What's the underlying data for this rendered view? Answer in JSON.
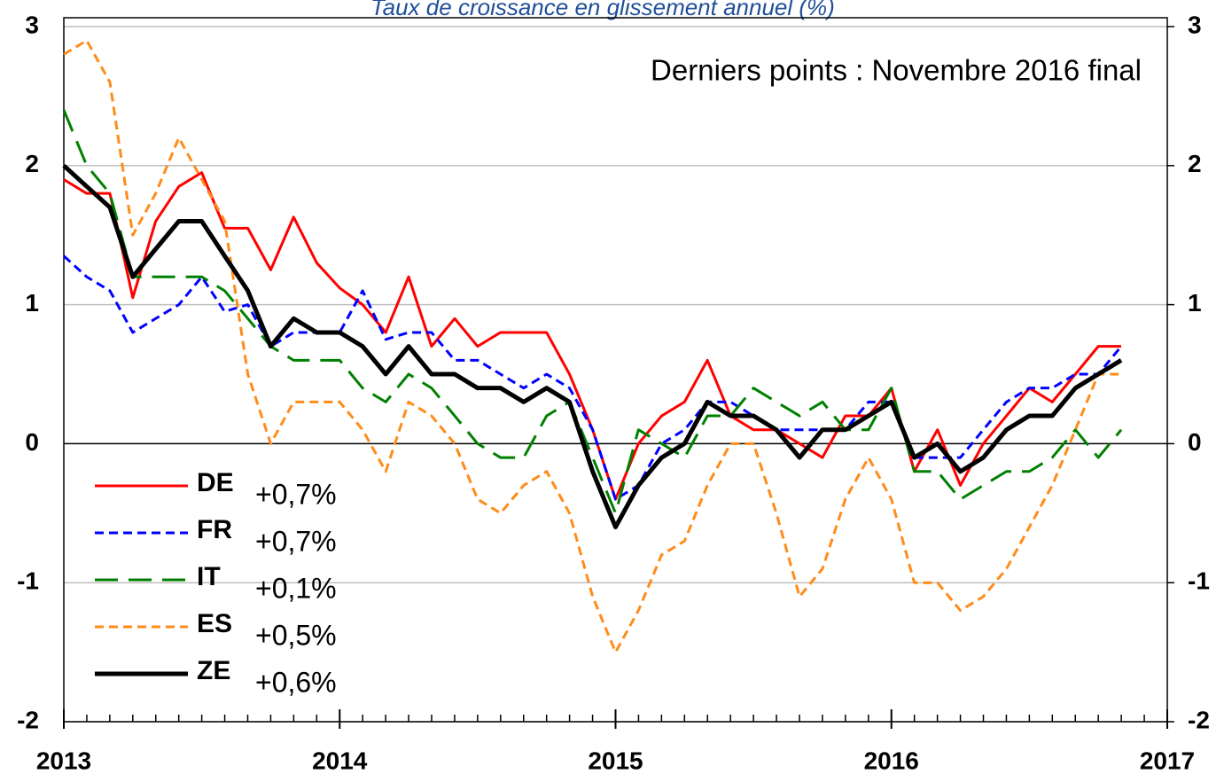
{
  "chart_data": {
    "type": "line",
    "title": "Taux de croissance en glissement annuel (%)",
    "annotation": "Derniers points : Novembre 2016 final",
    "x": [
      2013,
      2013.083,
      2013.167,
      2013.25,
      2013.333,
      2013.417,
      2013.5,
      2013.583,
      2013.667,
      2013.75,
      2013.833,
      2013.917,
      2014,
      2014.083,
      2014.167,
      2014.25,
      2014.333,
      2014.417,
      2014.5,
      2014.583,
      2014.667,
      2014.75,
      2014.833,
      2014.917,
      2015,
      2015.083,
      2015.167,
      2015.25,
      2015.333,
      2015.417,
      2015.5,
      2015.583,
      2015.667,
      2015.75,
      2015.833,
      2015.917,
      2016,
      2016.083,
      2016.167,
      2016.25,
      2016.333,
      2016.417,
      2016.5,
      2016.583,
      2016.667,
      2016.75,
      2016.833
    ],
    "xlim": [
      2013,
      2017
    ],
    "xticks": [
      2013,
      2014,
      2015,
      2016,
      2017
    ],
    "ylim": [
      -2,
      3
    ],
    "yticks": [
      -2,
      -1,
      0,
      1,
      2,
      3
    ],
    "y2lim": [
      -2,
      3
    ],
    "y2ticks": [
      -2,
      -1,
      0,
      1,
      2,
      3
    ],
    "grid": true,
    "legend": "lower left",
    "series": [
      {
        "name": "DE",
        "last_label": "+0,7%",
        "color": "#ff0000",
        "dash": "solid",
        "width": 3,
        "values": [
          1.9,
          1.8,
          1.8,
          1.05,
          1.6,
          1.85,
          1.95,
          1.55,
          1.55,
          1.25,
          1.63,
          1.3,
          1.12,
          1.0,
          0.8,
          1.2,
          0.7,
          0.9,
          0.7,
          0.8,
          0.8,
          0.8,
          0.5,
          0.1,
          -0.4,
          0.0,
          0.2,
          0.3,
          0.6,
          0.2,
          0.1,
          0.1,
          0.0,
          -0.1,
          0.2,
          0.2,
          0.4,
          -0.2,
          0.1,
          -0.3,
          0.0,
          0.2,
          0.4,
          0.3,
          0.5,
          0.7,
          0.7
        ]
      },
      {
        "name": "FR",
        "last_label": "+0,7%",
        "color": "#0000ff",
        "dash": "short",
        "width": 3,
        "values": [
          1.35,
          1.2,
          1.1,
          0.8,
          0.9,
          1.0,
          1.2,
          0.95,
          1.0,
          0.7,
          0.8,
          0.8,
          0.8,
          1.1,
          0.75,
          0.8,
          0.8,
          0.6,
          0.6,
          0.5,
          0.4,
          0.5,
          0.4,
          0.1,
          -0.4,
          -0.3,
          0.0,
          0.1,
          0.3,
          0.3,
          0.2,
          0.1,
          0.1,
          0.1,
          0.1,
          0.3,
          0.3,
          -0.1,
          -0.1,
          -0.1,
          0.1,
          0.3,
          0.4,
          0.4,
          0.5,
          0.5,
          0.7
        ]
      },
      {
        "name": "IT",
        "last_label": "+0,1%",
        "color": "#008000",
        "dash": "long",
        "width": 3,
        "values": [
          2.4,
          2.0,
          1.8,
          1.2,
          1.2,
          1.2,
          1.2,
          1.1,
          0.9,
          0.7,
          0.6,
          0.6,
          0.6,
          0.4,
          0.3,
          0.5,
          0.4,
          0.2,
          0.0,
          -0.1,
          -0.1,
          0.2,
          0.3,
          -0.1,
          -0.5,
          0.1,
          0.0,
          -0.1,
          0.2,
          0.2,
          0.4,
          0.3,
          0.2,
          0.3,
          0.1,
          0.1,
          0.4,
          -0.2,
          -0.2,
          -0.4,
          -0.3,
          -0.2,
          -0.2,
          -0.1,
          0.1,
          -0.1,
          0.1
        ]
      },
      {
        "name": "ES",
        "last_label": "+0,5%",
        "color": "#ff8c1a",
        "dash": "short",
        "width": 3,
        "values": [
          2.8,
          2.9,
          2.6,
          1.5,
          1.8,
          2.2,
          1.9,
          1.6,
          0.5,
          0.0,
          0.3,
          0.3,
          0.3,
          0.1,
          -0.2,
          0.3,
          0.2,
          0.0,
          -0.4,
          -0.5,
          -0.3,
          -0.2,
          -0.5,
          -1.1,
          -1.5,
          -1.2,
          -0.8,
          -0.7,
          -0.3,
          0.0,
          0.0,
          -0.5,
          -1.1,
          -0.9,
          -0.4,
          -0.1,
          -0.4,
          -1.0,
          -1.0,
          -1.2,
          -1.1,
          -0.9,
          -0.6,
          -0.3,
          0.1,
          0.5,
          0.5
        ]
      },
      {
        "name": "ZE",
        "last_label": "+0,6%",
        "color": "#000000",
        "dash": "solid",
        "width": 5,
        "values": [
          2.0,
          1.85,
          1.7,
          1.2,
          1.4,
          1.6,
          1.6,
          1.35,
          1.1,
          0.7,
          0.9,
          0.8,
          0.8,
          0.7,
          0.5,
          0.7,
          0.5,
          0.5,
          0.4,
          0.4,
          0.3,
          0.4,
          0.3,
          -0.2,
          -0.6,
          -0.3,
          -0.1,
          0.0,
          0.3,
          0.2,
          0.2,
          0.1,
          -0.1,
          0.1,
          0.1,
          0.2,
          0.3,
          -0.1,
          0.0,
          -0.2,
          -0.1,
          0.1,
          0.2,
          0.2,
          0.4,
          0.5,
          0.6
        ]
      }
    ]
  }
}
